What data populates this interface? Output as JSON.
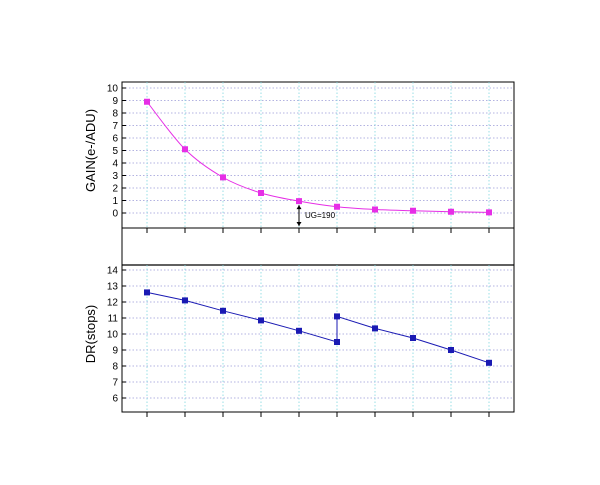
{
  "chart_data": [
    {
      "type": "line",
      "ylabel": "GAIN(e-/ADU)",
      "ylim": [
        0,
        10
      ],
      "yticks": [
        "0",
        "1",
        "2",
        "3",
        "4",
        "5",
        "6",
        "7",
        "8",
        "9",
        "10"
      ],
      "x": [
        1,
        2,
        3,
        4,
        5,
        6,
        7,
        8,
        9,
        10
      ],
      "xlim": [
        0.5,
        10.5
      ],
      "grid": true,
      "series": [
        {
          "values": [
            8.9,
            5.1,
            2.85,
            1.6,
            0.95,
            0.5,
            0.28,
            0.18,
            0.1,
            0.05
          ]
        }
      ],
      "annotations": [
        {
          "text": "UG=190",
          "x": 5,
          "y": 0.95
        }
      ],
      "color": "#e62ee6"
    },
    {
      "type": "line",
      "ylabel": "DR(stops)",
      "ylim": [
        6,
        14
      ],
      "yticks": [
        "6",
        "7",
        "8",
        "9",
        "10",
        "11",
        "12",
        "13",
        "14"
      ],
      "x": [
        1,
        2,
        3,
        4,
        5,
        6,
        6,
        7,
        8,
        9,
        10
      ],
      "xlim": [
        0.5,
        10.5
      ],
      "grid": true,
      "series": [
        {
          "values": [
            12.6,
            12.1,
            11.45,
            10.85,
            10.2,
            9.5,
            11.1,
            10.35,
            9.75,
            9.0,
            8.2
          ]
        }
      ],
      "color": "#1a1ab3"
    }
  ]
}
